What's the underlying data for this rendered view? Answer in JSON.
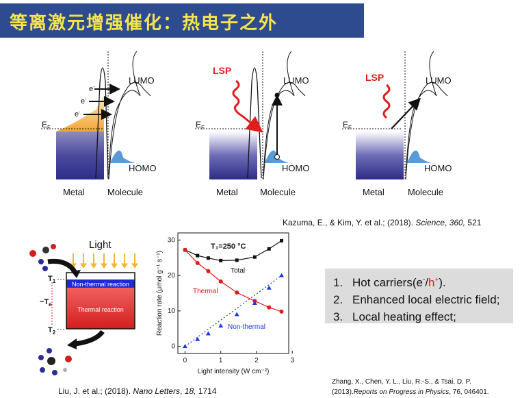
{
  "title": "等离激元增强催化：热电子之外",
  "fig1": {
    "panels": [
      {
        "metal": "Metal",
        "molecule": "Molecule",
        "lumo": "LUMO",
        "homo": "HOMO",
        "ef": "E",
        "ef_sub": "F",
        "electron": "e",
        "electron_sup": "-"
      },
      {
        "metal": "Metal",
        "molecule": "Molecule",
        "lumo": "LUMO",
        "homo": "HOMO",
        "ef": "E",
        "ef_sub": "F",
        "lsp": "LSP"
      },
      {
        "metal": "Metal",
        "molecule": "Molecule",
        "lumo": "LUMO",
        "homo": "HOMO",
        "ef": "E",
        "ef_sub": "F",
        "lsp": "LSP"
      }
    ],
    "citation": {
      "pre": "Kazuma, E., & Kim, Y. et al.; (2018). ",
      "journal": "Science",
      "mid": ", ",
      "volume": "360,",
      "post": " 521"
    }
  },
  "fig2": {
    "light": "Light",
    "nonthermal_reaction": "Non-thermal reaction",
    "thermal_reaction": "Thermal reaction",
    "t1": "T",
    "t1_sub": "1",
    "t2": "T",
    "t2_sub": "2",
    "te": "~T",
    "te_sub": "e",
    "citation": {
      "pre": "Liu, J. et al.;  (2018). ",
      "journal": "Nano Letters",
      "mid": ", ",
      "volume": "18,",
      "post": " 1714"
    }
  },
  "chart_data": {
    "type": "scatter",
    "annotation": "T₁=250 °C",
    "xlabel": "Light intensity (W cm⁻²)",
    "ylabel": "Reaction rate (μmol g⁻¹ s⁻¹)",
    "xlim": [
      -0.2,
      2.9
    ],
    "ylim": [
      -2,
      32
    ],
    "xticks": [
      0,
      1,
      2,
      3
    ],
    "yticks": [
      0,
      10,
      20,
      30
    ],
    "series": [
      {
        "name": "Total",
        "color": "#111111",
        "marker": "square",
        "x": [
          0,
          0.35,
          0.65,
          1.0,
          1.45,
          1.95,
          2.35,
          2.7
        ],
        "y": [
          27.2,
          25.6,
          24.9,
          24.2,
          24.3,
          25.2,
          27.5,
          29.8
        ]
      },
      {
        "name": "Thermal",
        "color": "#e31a1c",
        "marker": "circle",
        "x": [
          0,
          0.35,
          0.65,
          1.0,
          1.45,
          1.95,
          2.35,
          2.7
        ],
        "y": [
          27.2,
          23.5,
          21.2,
          18.3,
          15.2,
          12.8,
          11.0,
          9.8
        ]
      },
      {
        "name": "Non-thermal",
        "color": "#1a3ad6",
        "marker": "triangle",
        "x": [
          0,
          0.35,
          0.65,
          1.0,
          1.45,
          1.95,
          2.35,
          2.7
        ],
        "y": [
          0,
          2.0,
          3.6,
          5.8,
          9.0,
          12.2,
          16.5,
          20.0
        ]
      }
    ]
  },
  "list": [
    {
      "num": "1.",
      "pre": "Hot carriers(e",
      "sup1": "-",
      "slash": "/",
      "h": "h",
      "sup2": "+",
      "post": ")."
    },
    {
      "num": "2.",
      "text": "Enhanced local electric field;"
    },
    {
      "num": "3.",
      "text": "Local heating effect;"
    }
  ],
  "ref3": {
    "line1": "Zhang, X., Chen, Y. L., Liu, R.-S., & Tsai, D. P.",
    "pre": "(2013).",
    "journal": "Reports on Progress in Physics",
    "post": ", 76, 046401."
  }
}
